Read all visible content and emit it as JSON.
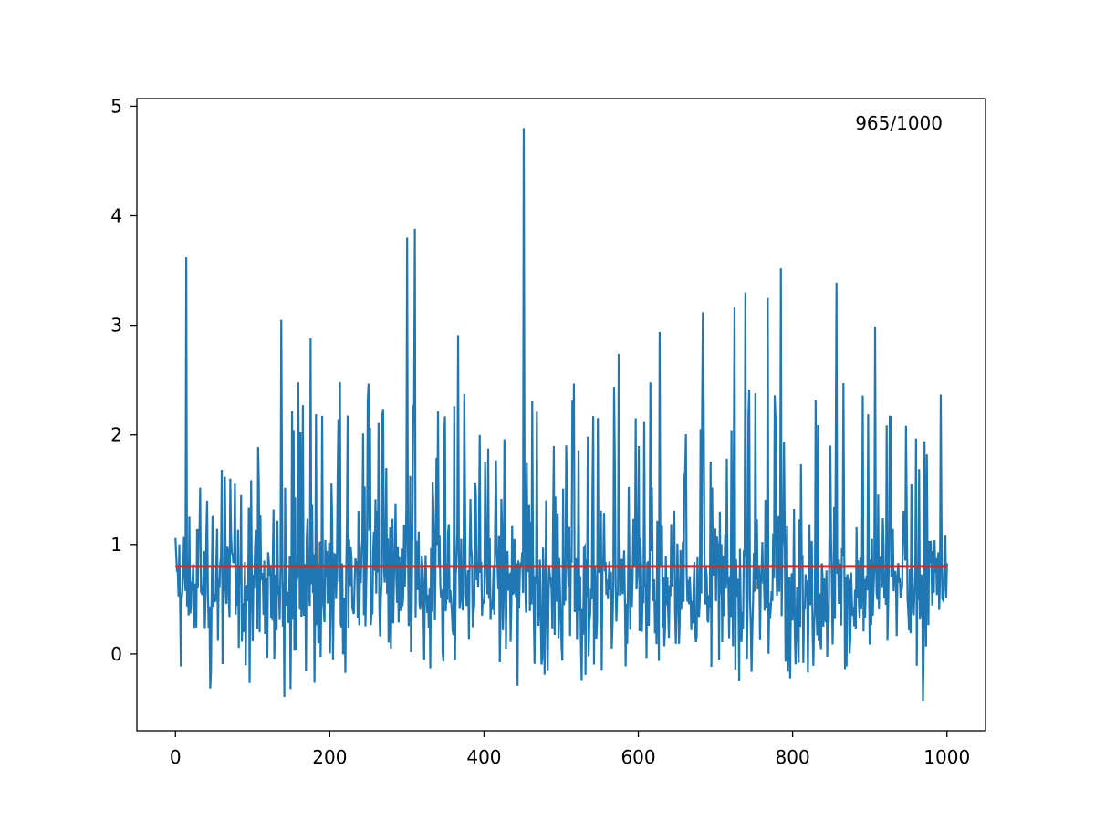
{
  "chart_data": {
    "type": "line",
    "title": "",
    "xlabel": "",
    "ylabel": "",
    "xlim": [
      -50,
      1050
    ],
    "ylim": [
      -0.7,
      5.07
    ],
    "grid": false,
    "x_ticks": [
      0,
      200,
      400,
      600,
      800,
      1000
    ],
    "y_ticks": [
      0,
      1,
      2,
      3,
      4,
      5
    ],
    "annotation": "965/1000",
    "colors": {
      "series": "#1f77b4",
      "mean_line": "#d62728",
      "axes": "#000000"
    },
    "series": [
      {
        "style": "line",
        "n_points": 1000,
        "x_range": [
          0,
          1000
        ],
        "typical_range": [
          0.0,
          1.5
        ],
        "notable_peaks": [
          {
            "x": 14,
            "y": 3.62
          },
          {
            "x": 137,
            "y": 3.05
          },
          {
            "x": 175,
            "y": 2.88
          },
          {
            "x": 300,
            "y": 3.8
          },
          {
            "x": 310,
            "y": 3.88
          },
          {
            "x": 366,
            "y": 2.91
          },
          {
            "x": 451,
            "y": 4.8
          },
          {
            "x": 574,
            "y": 2.74
          },
          {
            "x": 627,
            "y": 2.94
          },
          {
            "x": 683,
            "y": 3.12
          },
          {
            "x": 724,
            "y": 3.17
          },
          {
            "x": 738,
            "y": 3.3
          },
          {
            "x": 767,
            "y": 3.25
          },
          {
            "x": 784,
            "y": 3.52
          },
          {
            "x": 856,
            "y": 3.39
          },
          {
            "x": 906,
            "y": 2.99
          }
        ],
        "notable_troughs": [
          {
            "x": 149,
            "y": -0.32
          },
          {
            "x": 443,
            "y": -0.29
          },
          {
            "x": 968,
            "y": -0.43
          }
        ]
      },
      {
        "style": "hline",
        "y": 0.8,
        "x_range": [
          0,
          1000
        ]
      }
    ]
  }
}
